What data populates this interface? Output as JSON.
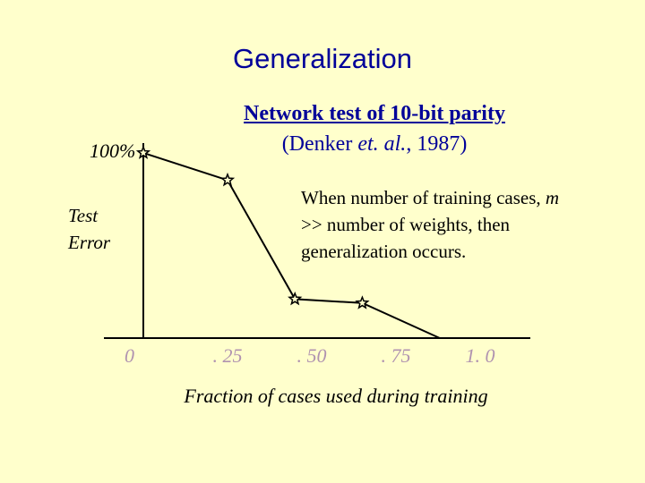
{
  "slide": {
    "title": "Generalization",
    "subtitle_line1": "Network test of 10-bit parity",
    "subtitle_line2_pre": "(Denker ",
    "subtitle_line2_em": "et. al.",
    "subtitle_line2_post": ", 1987)",
    "note_pre": "When number of training cases, ",
    "note_var": "m",
    "note_post": " >> number of weights, then generalization occurs."
  },
  "chart_data": {
    "type": "line",
    "title": "Network test of 10-bit parity (Denker et. al., 1987)",
    "xlabel": "Fraction of cases used during training",
    "ylabel": "Test Error",
    "y_top_label": "100%",
    "x_tick_labels": [
      "0",
      ". 25",
      ". 50",
      ". 75",
      "1. 0"
    ],
    "x_ticks": [
      0,
      0.25,
      0.5,
      0.75,
      1.0
    ],
    "xlim": [
      0,
      1.0
    ],
    "ylim": [
      0,
      1.0
    ],
    "marker": "star",
    "x": [
      0,
      0.25,
      0.45,
      0.65,
      0.88
    ],
    "y": [
      0.95,
      0.81,
      0.2,
      0.18,
      0
    ]
  }
}
